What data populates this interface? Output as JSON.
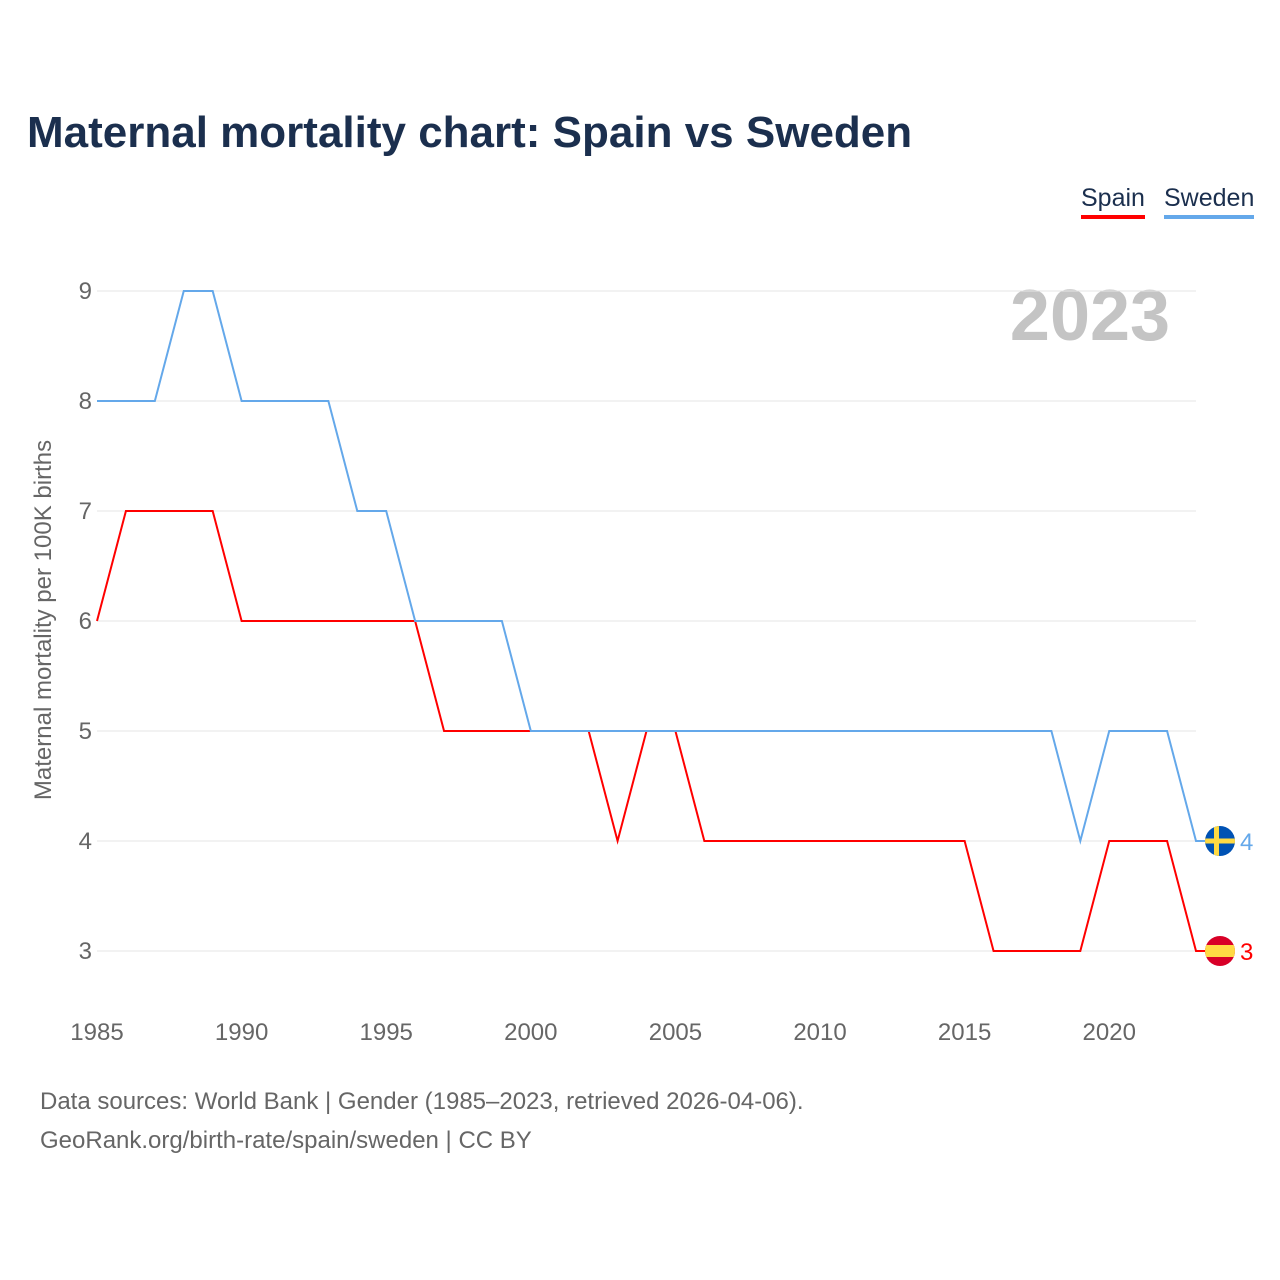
{
  "chart_data": {
    "type": "line",
    "title": "Maternal mortality chart: Spain vs Sweden",
    "ylabel": "Maternal mortality per 100K births",
    "xlabel": "",
    "year_label": "2023",
    "x": [
      1985,
      1986,
      1987,
      1988,
      1989,
      1990,
      1991,
      1992,
      1993,
      1994,
      1995,
      1996,
      1997,
      1998,
      1999,
      2000,
      2001,
      2002,
      2003,
      2004,
      2005,
      2006,
      2007,
      2008,
      2009,
      2010,
      2011,
      2012,
      2013,
      2014,
      2015,
      2016,
      2017,
      2018,
      2019,
      2020,
      2021,
      2022,
      2023
    ],
    "xlim": [
      1985,
      2023
    ],
    "ylim": [
      3,
      9
    ],
    "xticks": [
      1985,
      1990,
      1995,
      2000,
      2005,
      2010,
      2015,
      2020
    ],
    "yticks": [
      3,
      4,
      5,
      6,
      7,
      8,
      9
    ],
    "grid": true,
    "legend_position": "top-right",
    "series": [
      {
        "name": "Spain",
        "color": "#ff0000",
        "end_label": "3",
        "flag": "spain-flag-icon",
        "values": [
          6,
          7,
          7,
          7,
          7,
          6,
          6,
          6,
          6,
          6,
          6,
          6,
          5,
          5,
          5,
          5,
          5,
          5,
          4,
          5,
          5,
          4,
          4,
          4,
          4,
          4,
          4,
          4,
          4,
          4,
          4,
          3,
          3,
          3,
          3,
          4,
          4,
          4,
          3
        ]
      },
      {
        "name": "Sweden",
        "color": "#64a8ea",
        "end_label": "4",
        "flag": "sweden-flag-icon",
        "values": [
          8,
          8,
          8,
          9,
          9,
          8,
          8,
          8,
          8,
          7,
          7,
          6,
          6,
          6,
          6,
          5,
          5,
          5,
          5,
          5,
          5,
          5,
          5,
          5,
          5,
          5,
          5,
          5,
          5,
          5,
          5,
          5,
          5,
          5,
          4,
          5,
          5,
          5,
          4
        ]
      }
    ]
  },
  "footer": {
    "line1": "Data sources: World Bank | Gender (1985–2023, retrieved 2026-04-06).",
    "line2": "GeoRank.org/birth-rate/spain/sweden | CC BY"
  }
}
